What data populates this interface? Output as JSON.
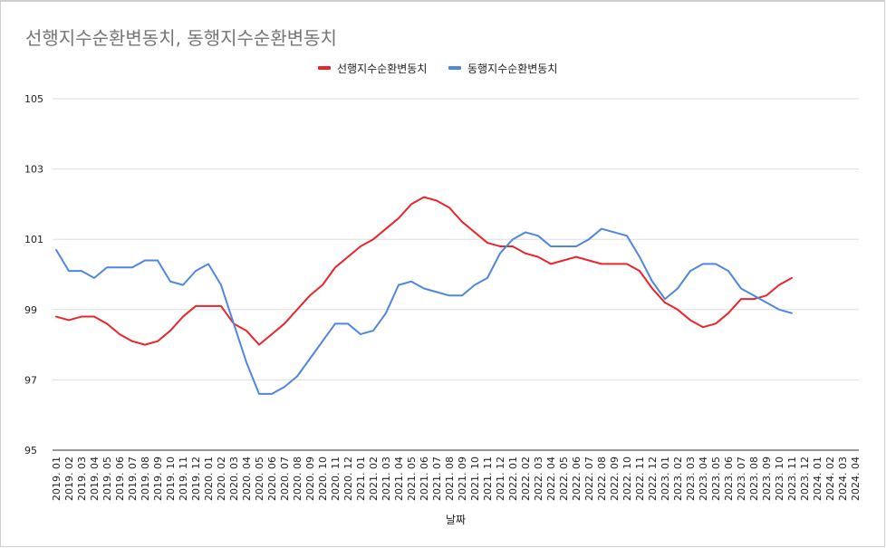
{
  "chart_data": {
    "type": "line",
    "title": "선행지수순환변동치, 동행지수순환변동치",
    "xlabel": "날짜",
    "ylabel": "",
    "ylim": [
      95,
      105
    ],
    "yticks": [
      95,
      97,
      99,
      101,
      103,
      105
    ],
    "grid": true,
    "legend_position": "top-center",
    "categories": [
      "2019. 01",
      "2019. 02",
      "2019. 03",
      "2019. 04",
      "2019. 05",
      "2019. 06",
      "2019. 07",
      "2019. 08",
      "2019. 09",
      "2019. 10",
      "2019. 11",
      "2019. 12",
      "2020. 01",
      "2020. 02",
      "2020. 03",
      "2020. 04",
      "2020. 05",
      "2020. 06",
      "2020. 07",
      "2020. 08",
      "2020. 09",
      "2020. 10",
      "2020. 11",
      "2020. 12",
      "2021. 01",
      "2021. 02",
      "2021. 03",
      "2021. 04",
      "2021. 05",
      "2021. 06",
      "2021. 07",
      "2021. 08",
      "2021. 09",
      "2021. 10",
      "2021. 11",
      "2021. 12",
      "2022. 01",
      "2022. 02",
      "2022. 03",
      "2022. 04",
      "2022. 05",
      "2022. 06",
      "2022. 07",
      "2022. 08",
      "2022. 09",
      "2022. 10",
      "2022. 11",
      "2022. 12",
      "2023. 01",
      "2023. 02",
      "2023. 03",
      "2023. 04",
      "2023. 05",
      "2023. 06",
      "2023. 07",
      "2023. 08",
      "2023. 09",
      "2023. 10",
      "2023. 11",
      "2023. 12",
      "2024. 01",
      "2024. 02",
      "2024. 03",
      "2024. 04"
    ],
    "series": [
      {
        "name": "선행지수순환변동치",
        "color": "#e8262b",
        "values": [
          98.8,
          98.7,
          98.8,
          98.8,
          98.6,
          98.3,
          98.1,
          98.0,
          98.1,
          98.4,
          98.8,
          99.1,
          99.1,
          99.1,
          98.6,
          98.4,
          98.0,
          98.3,
          98.6,
          99.0,
          99.4,
          99.7,
          100.2,
          100.5,
          100.8,
          101.0,
          101.3,
          101.6,
          102.0,
          102.2,
          102.1,
          101.9,
          101.5,
          101.2,
          100.9,
          100.8,
          100.8,
          100.6,
          100.5,
          100.3,
          100.4,
          100.5,
          100.4,
          100.3,
          100.3,
          100.3,
          100.1,
          99.6,
          99.2,
          99.0,
          98.7,
          98.5,
          98.6,
          98.9,
          99.3,
          99.3,
          99.4,
          99.7,
          99.9,
          null,
          null,
          null,
          null,
          null
        ]
      },
      {
        "name": "동행지수순환변동치",
        "color": "#4f86e0",
        "values": [
          100.7,
          100.1,
          100.1,
          99.9,
          100.2,
          100.2,
          100.2,
          100.4,
          100.4,
          99.8,
          99.7,
          100.1,
          100.3,
          99.7,
          98.6,
          97.5,
          96.6,
          96.6,
          96.8,
          97.1,
          97.6,
          98.1,
          98.6,
          98.6,
          98.3,
          98.4,
          98.9,
          99.7,
          99.8,
          99.6,
          99.5,
          99.4,
          99.4,
          99.7,
          99.9,
          100.6,
          101.0,
          101.2,
          101.1,
          100.8,
          100.8,
          100.8,
          101.0,
          101.3,
          101.2,
          101.1,
          100.5,
          99.8,
          99.3,
          99.6,
          100.1,
          100.3,
          100.3,
          100.1,
          99.6,
          99.4,
          99.2,
          99.0,
          98.9,
          null,
          null,
          null,
          null,
          null
        ]
      }
    ]
  }
}
